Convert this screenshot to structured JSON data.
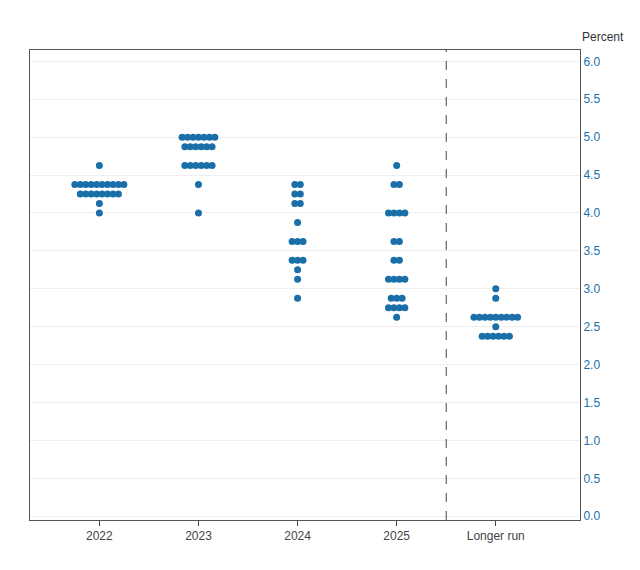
{
  "chart_data": {
    "type": "dot_plot",
    "ylabel": "Percent",
    "categories": [
      "2022",
      "2023",
      "2024",
      "2025",
      "Longer run"
    ],
    "values": [
      [
        {
          "y": 4.625,
          "count": 1
        },
        {
          "y": 4.375,
          "count": 10
        },
        {
          "y": 4.25,
          "count": 8
        },
        {
          "y": 4.125,
          "count": 1
        },
        {
          "y": 4.0,
          "count": 1
        }
      ],
      [
        {
          "y": 5.0,
          "count": 7
        },
        {
          "y": 4.875,
          "count": 6
        },
        {
          "y": 4.625,
          "count": 6
        },
        {
          "y": 4.375,
          "count": 1
        },
        {
          "y": 4.0,
          "count": 1
        }
      ],
      [
        {
          "y": 4.375,
          "count": 2
        },
        {
          "y": 4.25,
          "count": 2
        },
        {
          "y": 4.125,
          "count": 2
        },
        {
          "y": 3.875,
          "count": 1
        },
        {
          "y": 3.625,
          "count": 3
        },
        {
          "y": 3.375,
          "count": 3
        },
        {
          "y": 3.25,
          "count": 1
        },
        {
          "y": 3.125,
          "count": 1
        },
        {
          "y": 2.875,
          "count": 1
        }
      ],
      [
        {
          "y": 4.625,
          "count": 1
        },
        {
          "y": 4.375,
          "count": 2
        },
        {
          "y": 4.0,
          "count": 4
        },
        {
          "y": 3.625,
          "count": 2
        },
        {
          "y": 3.375,
          "count": 2
        },
        {
          "y": 3.125,
          "count": 4
        },
        {
          "y": 2.875,
          "count": 3
        },
        {
          "y": 2.75,
          "count": 4
        },
        {
          "y": 2.625,
          "count": 1
        }
      ],
      [
        {
          "y": 3.0,
          "count": 1
        },
        {
          "y": 2.875,
          "count": 1
        },
        {
          "y": 2.625,
          "count": 9
        },
        {
          "y": 2.5,
          "count": 1
        },
        {
          "y": 2.375,
          "count": 6
        }
      ]
    ],
    "color": "#1a6fa8",
    "ylim": [
      -0.05,
      6.15
    ],
    "yticks": [
      {
        "value": 0.0,
        "label": "0.0"
      },
      0.5,
      {
        "value": 1.0,
        "label": "1.0"
      },
      1.5,
      {
        "value": 2.0,
        "label": "2.0"
      },
      2.5,
      {
        "value": 3.0,
        "label": "3.0"
      },
      3.5,
      {
        "value": 4.0,
        "label": "4.0"
      },
      4.5,
      {
        "value": 5.0,
        "label": "5.0"
      },
      5.5,
      {
        "value": 6.0,
        "label": "6.0"
      }
    ],
    "grid": true
  }
}
